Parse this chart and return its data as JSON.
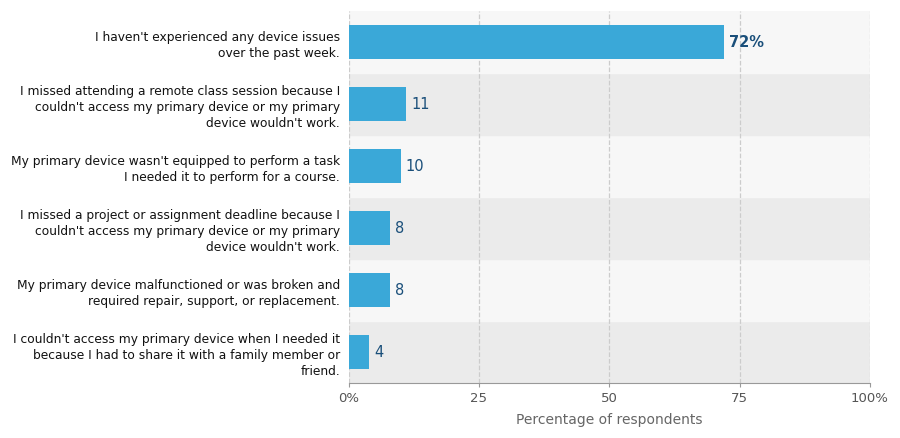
{
  "categories": [
    "I couldn't access my primary device when I needed it\nbecause I had to share it with a family member or\nfriend.",
    "My primary device malfunctioned or was broken and\nrequired repair, support, or replacement.",
    "I missed a project or assignment deadline because I\ncouldn't access my primary device or my primary\ndevice wouldn't work.",
    "My primary device wasn't equipped to perform a task\nI needed it to perform for a course.",
    "I missed attending a remote class session because I\ncouldn't access my primary device or my primary\ndevice wouldn't work.",
    "I haven't experienced any device issues\nover the past week."
  ],
  "values": [
    4,
    8,
    8,
    10,
    11,
    72
  ],
  "bar_color": "#3aa8d8",
  "label_color": "#1a4f7a",
  "background_color": "#ffffff",
  "plot_bg_color": "#ffffff",
  "xlabel": "Percentage of respondents",
  "xlim": [
    0,
    100
  ],
  "xticks": [
    0,
    25,
    50,
    75,
    100
  ],
  "xticklabels": [
    "0%",
    "25",
    "50",
    "75",
    "100%"
  ],
  "grid_color": "#cccccc",
  "bar_height": 0.55,
  "label_fontsize": 10.5,
  "tick_fontsize": 9.5,
  "xlabel_fontsize": 10,
  "row_colors": [
    "#e8e8e8",
    "#e8e8e8",
    "#f5f5f5",
    "#e8e8e8",
    "#f5f5f5",
    "#f5f5f5"
  ]
}
